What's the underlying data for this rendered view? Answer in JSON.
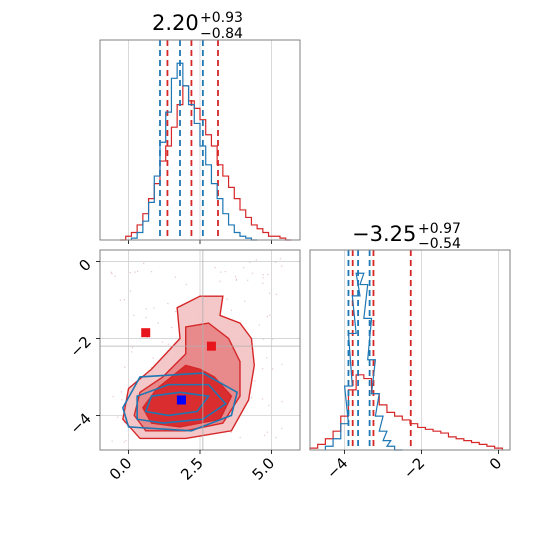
{
  "colors": {
    "red": "#d62728",
    "blue": "#1f77b4",
    "red_fill_light": "#f3c4c5",
    "red_fill_mid": "#e78788",
    "red_fill_dark": "#d9282a",
    "marker_red": "#e8141b",
    "marker_blue": "#0000ff",
    "grid": "#d0d0d0"
  },
  "titles": {
    "p0": {
      "main": "2.20",
      "plus": "+0.93",
      "minus": "−0.84"
    },
    "p1": {
      "main": "−3.25",
      "plus": "+0.97",
      "minus": "−0.54"
    }
  },
  "chart_data": [
    {
      "type": "histogram",
      "panel": "marginal-p0",
      "xlim": [
        -1.0,
        6.0
      ],
      "series": [
        {
          "color": "red",
          "x": [
            -0.2,
            0.0,
            0.2,
            0.4,
            0.6,
            0.8,
            1.0,
            1.2,
            1.4,
            1.6,
            1.8,
            2.0,
            2.2,
            2.4,
            2.6,
            2.8,
            3.0,
            3.2,
            3.4,
            3.6,
            3.8,
            4.0,
            4.2,
            4.4,
            4.6,
            4.8,
            5.0,
            5.2,
            5.4,
            5.6
          ],
          "y": [
            0.0,
            0.02,
            0.04,
            0.08,
            0.14,
            0.22,
            0.3,
            0.42,
            0.5,
            0.6,
            0.72,
            0.82,
            0.74,
            0.7,
            0.64,
            0.56,
            0.5,
            0.4,
            0.34,
            0.28,
            0.22,
            0.16,
            0.12,
            0.08,
            0.06,
            0.04,
            0.02,
            0.02,
            0.01,
            0.0
          ],
          "quantile_lines": [
            1.36,
            2.2,
            3.13
          ]
        },
        {
          "color": "blue",
          "x": [
            0.2,
            0.4,
            0.6,
            0.8,
            1.0,
            1.2,
            1.4,
            1.6,
            1.8,
            2.0,
            2.2,
            2.4,
            2.6,
            2.8,
            3.0,
            3.2,
            3.4,
            3.6,
            3.8,
            4.0,
            4.2,
            4.4
          ],
          "y": [
            0.01,
            0.04,
            0.1,
            0.2,
            0.34,
            0.52,
            0.68,
            0.86,
            0.94,
            0.82,
            0.72,
            0.62,
            0.5,
            0.4,
            0.3,
            0.22,
            0.14,
            0.08,
            0.04,
            0.02,
            0.01,
            0.0
          ],
          "quantile_lines": [
            1.1,
            1.8,
            2.6
          ]
        }
      ]
    },
    {
      "type": "contour",
      "panel": "joint-p0-p1",
      "xlim": [
        -1.0,
        6.0
      ],
      "ylim": [
        -4.9,
        0.3
      ],
      "xticks": [
        0.0,
        2.5,
        5.0
      ],
      "xtick_labels": [
        "0.0",
        "2.5",
        "5.0"
      ],
      "yticks": [
        0,
        -2,
        -4
      ],
      "ytick_labels": [
        "0",
        "−2",
        "−4"
      ],
      "red_contours": [
        {
          "level": "outer",
          "points": [
            [
              0.4,
              -4.6
            ],
            [
              -0.2,
              -4.1
            ],
            [
              0.0,
              -3.3
            ],
            [
              0.8,
              -2.8
            ],
            [
              1.8,
              -2.0
            ],
            [
              1.7,
              -1.2
            ],
            [
              2.5,
              -0.9
            ],
            [
              3.3,
              -0.9
            ],
            [
              3.2,
              -1.4
            ],
            [
              3.9,
              -1.6
            ],
            [
              4.3,
              -2.0
            ],
            [
              4.4,
              -2.7
            ],
            [
              4.2,
              -3.6
            ],
            [
              3.6,
              -4.4
            ],
            [
              2.0,
              -4.6
            ]
          ]
        },
        {
          "level": "middle",
          "points": [
            [
              0.6,
              -4.4
            ],
            [
              0.2,
              -4.0
            ],
            [
              0.4,
              -3.4
            ],
            [
              1.2,
              -3.0
            ],
            [
              2.0,
              -2.4
            ],
            [
              2.0,
              -1.7
            ],
            [
              2.8,
              -1.6
            ],
            [
              3.5,
              -2.0
            ],
            [
              3.9,
              -2.6
            ],
            [
              3.9,
              -3.5
            ],
            [
              3.3,
              -4.2
            ],
            [
              2.0,
              -4.4
            ]
          ]
        },
        {
          "level": "inner",
          "points": [
            [
              0.8,
              -4.2
            ],
            [
              0.5,
              -3.8
            ],
            [
              1.0,
              -3.3
            ],
            [
              2.0,
              -2.7
            ],
            [
              2.5,
              -2.8
            ],
            [
              3.0,
              -3.0
            ],
            [
              3.6,
              -3.5
            ],
            [
              3.2,
              -4.1
            ],
            [
              1.8,
              -4.3
            ]
          ]
        }
      ],
      "blue_contours": [
        {
          "level": "outer",
          "points": [
            [
              0.0,
              -4.3
            ],
            [
              -0.2,
              -3.8
            ],
            [
              0.4,
              -3.0
            ],
            [
              2.6,
              -2.9
            ],
            [
              3.8,
              -3.4
            ],
            [
              3.6,
              -4.0
            ],
            [
              2.2,
              -4.4
            ]
          ]
        },
        {
          "level": "middle",
          "points": [
            [
              0.3,
              -4.1
            ],
            [
              0.3,
              -3.5
            ],
            [
              1.4,
              -3.2
            ],
            [
              2.8,
              -3.2
            ],
            [
              3.4,
              -3.7
            ],
            [
              2.6,
              -4.1
            ],
            [
              1.2,
              -4.2
            ]
          ]
        },
        {
          "level": "inner",
          "points": [
            [
              0.6,
              -3.9
            ],
            [
              0.8,
              -3.5
            ],
            [
              1.8,
              -3.4
            ],
            [
              2.8,
              -3.5
            ],
            [
              2.4,
              -3.9
            ],
            [
              1.4,
              -4.0
            ]
          ]
        }
      ],
      "markers": [
        {
          "color": "red",
          "x": 0.6,
          "y": -1.85
        },
        {
          "color": "red",
          "x": 2.9,
          "y": -2.2
        },
        {
          "color": "blue",
          "x": 1.85,
          "y": -3.6
        }
      ],
      "truth_lines": {
        "x": 2.6,
        "y": -2.2
      }
    },
    {
      "type": "histogram",
      "panel": "marginal-p1",
      "xlim": [
        -4.9,
        0.3
      ],
      "xticks": [
        -4,
        -2,
        0
      ],
      "xtick_labels": [
        "−4",
        "−2",
        "0"
      ],
      "series": [
        {
          "color": "red",
          "x": [
            -4.8,
            -4.6,
            -4.4,
            -4.2,
            -4.0,
            -3.8,
            -3.6,
            -3.4,
            -3.2,
            -3.0,
            -2.8,
            -2.6,
            -2.4,
            -2.2,
            -2.0,
            -1.8,
            -1.6,
            -1.4,
            -1.2,
            -1.0,
            -0.8,
            -0.6,
            -0.4,
            -0.2,
            0.0
          ],
          "y": [
            0.01,
            0.03,
            0.06,
            0.1,
            0.18,
            0.32,
            0.4,
            0.38,
            0.3,
            0.24,
            0.2,
            0.18,
            0.16,
            0.14,
            0.12,
            0.11,
            0.1,
            0.09,
            0.07,
            0.06,
            0.05,
            0.04,
            0.03,
            0.02,
            0.01
          ],
          "quantile_lines": [
            -3.79,
            -3.25,
            -2.28
          ]
        },
        {
          "color": "blue",
          "x": [
            -4.4,
            -4.2,
            -4.0,
            -3.9,
            -3.8,
            -3.7,
            -3.6,
            -3.5,
            -3.4,
            -3.3,
            -3.2,
            -3.1,
            -3.0,
            -2.9,
            -2.8,
            -2.6
          ],
          "y": [
            0.02,
            0.06,
            0.14,
            0.34,
            0.62,
            0.82,
            0.94,
            0.88,
            0.7,
            0.48,
            0.3,
            0.18,
            0.1,
            0.05,
            0.02,
            0.0
          ],
          "quantile_lines": [
            -3.9,
            -3.65,
            -3.35
          ]
        }
      ]
    }
  ]
}
